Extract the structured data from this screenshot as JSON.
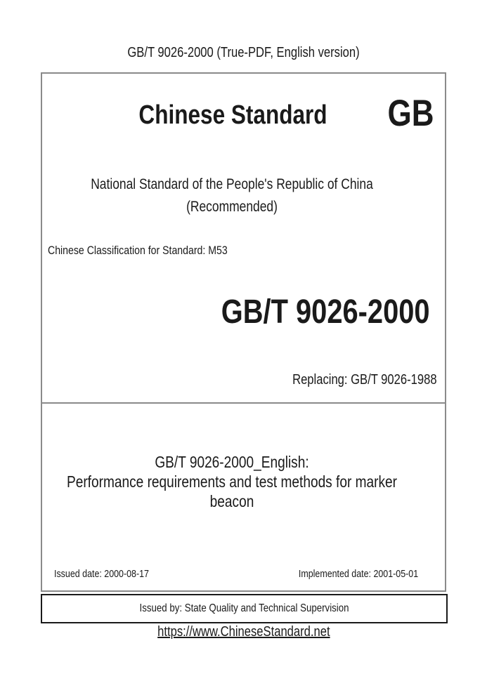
{
  "page": {
    "header": "GB/T 9026-2000 (True-PDF, English version)",
    "footer_url": "https://www.ChineseStandard.net"
  },
  "cover": {
    "brand_title": "Chinese Standard",
    "gb_logo": "GB",
    "national_line": "National Standard of the People's Republic of China",
    "recommended_line": "(Recommended)",
    "classification": "Chinese Classification for Standard: M53",
    "standard_code": "GB/T 9026-2000",
    "replacing": "Replacing: GB/T 9026-1988",
    "english_title_heading": "GB/T 9026-2000_English:",
    "english_title_body": "Performance requirements and test methods for marker beacon",
    "issued_date": "Issued date: 2000-08-17",
    "implemented_date": "Implemented date: 2001-05-01",
    "issued_by": "Issued by: State Quality and Technical Supervision"
  },
  "colors": {
    "main_box_border": "#8a8a8a",
    "issuer_box_border": "#1a1a1a",
    "text": "#1a1a1a",
    "background": "#ffffff"
  }
}
